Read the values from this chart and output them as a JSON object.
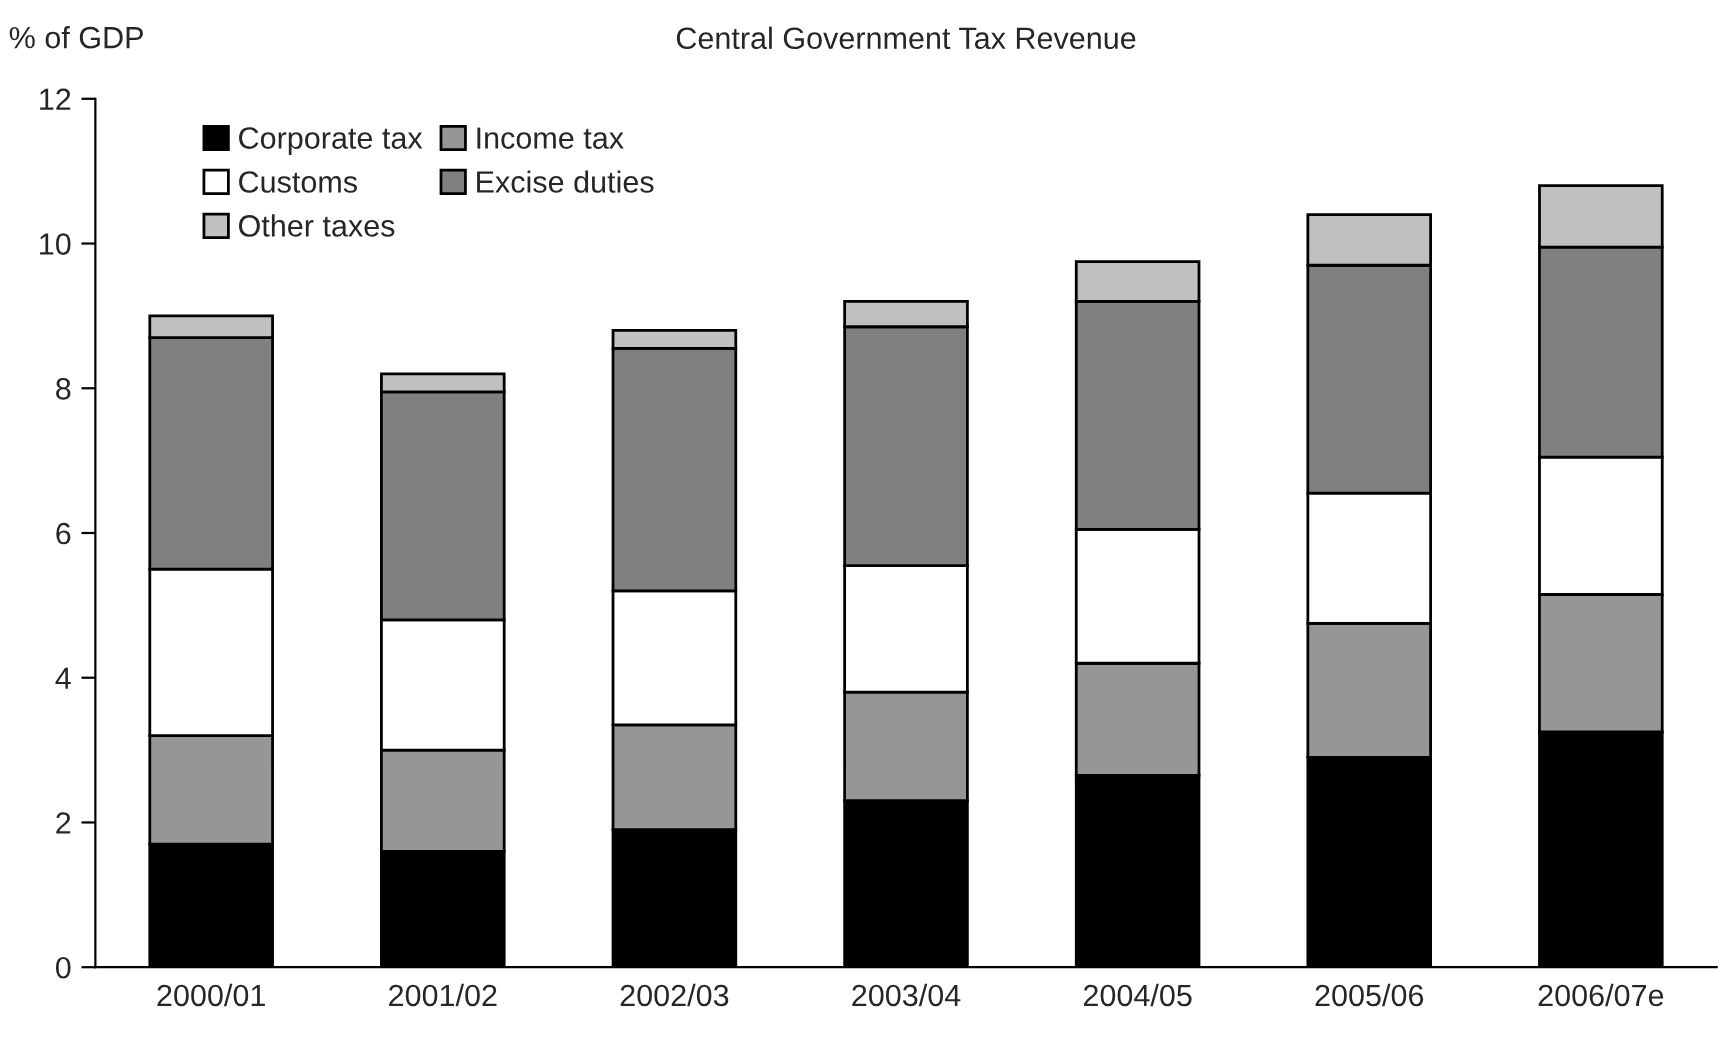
{
  "chart_data": {
    "type": "bar",
    "title": "Central Government Tax Revenue",
    "ylabel": "% of GDP",
    "stacked": true,
    "categories": [
      "2000/01",
      "2001/02",
      "2002/03",
      "2003/04",
      "2004/05",
      "2005/06",
      "2006/07e"
    ],
    "series": [
      {
        "name": "Corporate tax",
        "color": "#000000",
        "values": [
          1.7,
          1.6,
          1.9,
          2.3,
          2.65,
          2.9,
          3.25
        ]
      },
      {
        "name": "Income tax",
        "color": "#969696",
        "values": [
          1.5,
          1.4,
          1.45,
          1.5,
          1.55,
          1.85,
          1.9
        ]
      },
      {
        "name": "Customs",
        "color": "#ffffff",
        "values": [
          2.3,
          1.8,
          1.85,
          1.75,
          1.85,
          1.8,
          1.9
        ]
      },
      {
        "name": "Excise duties",
        "color": "#808080",
        "values": [
          3.2,
          3.15,
          3.35,
          3.3,
          3.15,
          3.15,
          2.9
        ]
      },
      {
        "name": "Other taxes",
        "color": "#c0c0c0",
        "values": [
          0.3,
          0.25,
          0.25,
          0.35,
          0.55,
          0.7,
          0.85
        ]
      }
    ],
    "ylim": [
      0,
      12
    ],
    "yticks": [
      0,
      2,
      4,
      6,
      8,
      10,
      12
    ],
    "grid": false,
    "legend": "top left"
  }
}
